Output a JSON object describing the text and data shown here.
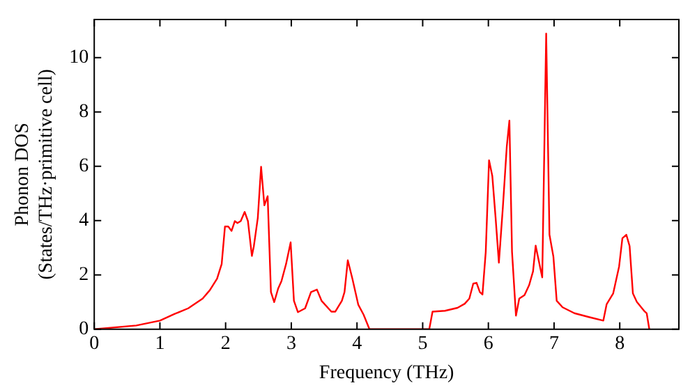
{
  "chart_data": {
    "type": "line",
    "xlabel": "Frequency (THz)",
    "ylabel": "Phonon DOS\n(States/THz·primitive cell)",
    "xlim": [
      0,
      8.9
    ],
    "ylim": [
      0,
      11.4
    ],
    "xticks": [
      0,
      1,
      2,
      3,
      4,
      5,
      6,
      7,
      8
    ],
    "yticks": [
      0,
      2,
      4,
      6,
      8,
      10
    ],
    "grid": false,
    "legend": false,
    "marker": "none",
    "line_style": "solid",
    "series": [
      {
        "color": "#ff0000",
        "x": [
          0,
          0.64,
          1.0,
          1.22,
          1.43,
          1.65,
          1.76,
          1.87,
          1.94,
          1.99,
          2.04,
          2.09,
          2.14,
          2.18,
          2.23,
          2.29,
          2.34,
          2.4,
          2.43,
          2.49,
          2.54,
          2.59,
          2.64,
          2.69,
          2.74,
          2.8,
          2.85,
          2.92,
          2.99,
          3.04,
          3.1,
          3.21,
          3.3,
          3.39,
          3.46,
          3.61,
          3.67,
          3.77,
          3.81,
          3.86,
          3.93,
          4.02,
          4.1,
          4.19,
          5.0,
          5.1,
          5.15,
          5.34,
          5.53,
          5.64,
          5.71,
          5.77,
          5.82,
          5.87,
          5.91,
          5.96,
          6.01,
          6.06,
          6.11,
          6.16,
          6.22,
          6.28,
          6.32,
          6.36,
          6.42,
          6.47,
          6.55,
          6.62,
          6.68,
          6.72,
          6.77,
          6.82,
          6.88,
          6.93,
          6.99,
          7.04,
          7.13,
          7.31,
          7.53,
          7.75,
          7.8,
          7.9,
          7.99,
          8.04,
          8.1,
          8.15,
          8.2,
          8.26,
          8.37,
          8.41,
          8.45
        ],
        "values": [
          0,
          0.14,
          0.32,
          0.56,
          0.77,
          1.13,
          1.44,
          1.86,
          2.4,
          3.78,
          3.78,
          3.62,
          3.98,
          3.91,
          3.98,
          4.32,
          3.98,
          2.7,
          3.06,
          4.1,
          5.98,
          4.56,
          4.9,
          1.37,
          1.0,
          1.5,
          1.77,
          2.4,
          3.2,
          1.05,
          0.63,
          0.77,
          1.37,
          1.46,
          1.05,
          0.65,
          0.65,
          1.05,
          1.37,
          2.54,
          1.86,
          0.9,
          0.54,
          0,
          0,
          0,
          0.65,
          0.68,
          0.79,
          0.94,
          1.13,
          1.68,
          1.71,
          1.37,
          1.28,
          2.85,
          6.22,
          5.64,
          4.1,
          2.45,
          4.47,
          6.72,
          7.68,
          2.85,
          0.5,
          1.13,
          1.26,
          1.62,
          2.13,
          3.08,
          2.49,
          1.91,
          10.88,
          3.48,
          2.67,
          1.05,
          0.81,
          0.59,
          0.45,
          0.32,
          0.92,
          1.32,
          2.31,
          3.35,
          3.48,
          3.06,
          1.32,
          1.01,
          0.68,
          0.59,
          0
        ]
      }
    ]
  }
}
